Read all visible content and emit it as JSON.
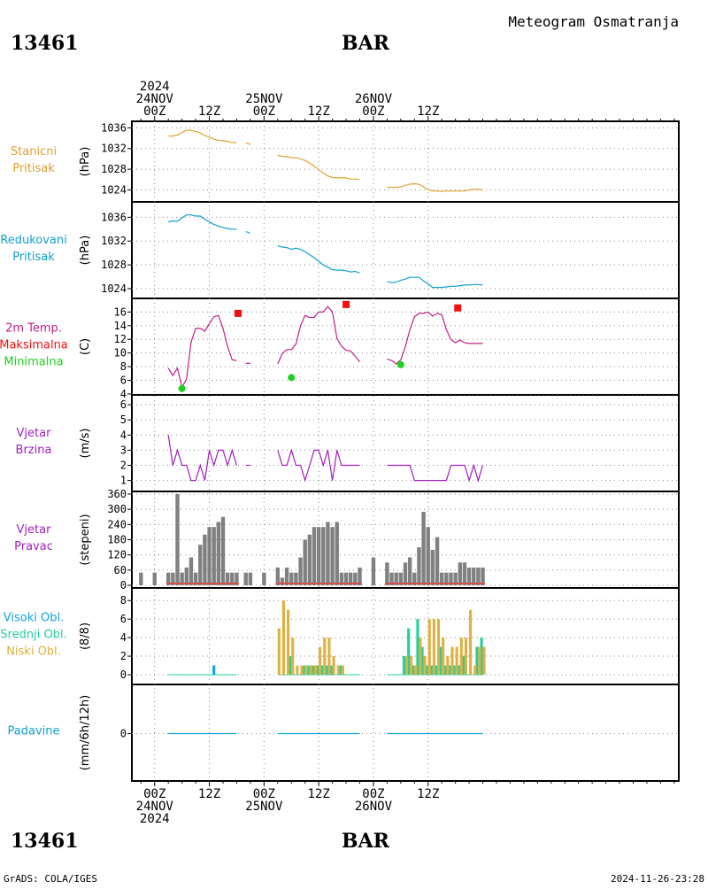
{
  "header": {
    "title": "Meteogram Osmatranja",
    "station_id": "13461",
    "station_name": "BAR"
  },
  "footer": {
    "left": "GrADS: COLA/IGES",
    "right": "2024-11-26-23:28"
  },
  "colors": {
    "station_pressure": "#e0a030",
    "sea_pressure": "#10a0d0",
    "temp_line": "#c0208a",
    "temp_max": "#f01010",
    "temp_min": "#20d020",
    "wind": "#a020c0",
    "wind_dir_bar": "#808080",
    "wind_dir_base": "#d05050",
    "cloud_high": "#10a0e0",
    "cloud_mid": "#20d0a0",
    "cloud_low": "#e0b040",
    "precip": "#10a0d0"
  },
  "chart_data": {
    "type": "meteogram",
    "time_axis": {
      "unit": "hours since 2024-11-24 00Z",
      "range": [
        -5,
        115
      ],
      "top_labels": [
        {
          "t": 0,
          "lines": [
            "2024",
            "24NOV",
            "00Z"
          ]
        },
        {
          "t": 24,
          "lines": [
            "25NOV",
            "00Z"
          ]
        },
        {
          "t": 48,
          "lines": [
            "26NOV",
            "00Z"
          ]
        }
      ],
      "bottom_labels": [
        {
          "t": 0,
          "lines": [
            "00Z",
            "24NOV",
            "2024"
          ]
        },
        {
          "t": 24,
          "lines": [
            "00Z",
            "25NOV"
          ]
        },
        {
          "t": 48,
          "lines": [
            "00Z",
            "26NOV"
          ]
        }
      ],
      "noon_label": "12Z",
      "noon_ticks": [
        12,
        36,
        60
      ]
    },
    "panels": [
      {
        "id": "station_pressure",
        "label_lines": [
          "Stanicni",
          "Pritisak"
        ],
        "unit": "(hPa)",
        "ylim": [
          1023.4,
          1036.4
        ],
        "ticks": [
          1024,
          1028,
          1032,
          1036
        ],
        "series": [
          {
            "x": [
              3,
              4,
              5,
              6,
              7,
              8,
              9,
              10,
              11,
              12,
              13,
              14,
              15,
              16,
              17,
              18
            ],
            "y": [
              1034.4,
              1034.4,
              1034.6,
              1035.1,
              1035.6,
              1035.5,
              1035.3,
              1035.0,
              1034.5,
              1034.2,
              1033.8,
              1033.6,
              1033.5,
              1033.4,
              1033.1,
              1033.2
            ]
          },
          {
            "x": [
              20,
              21
            ],
            "y": [
              1033.1,
              1032.8
            ]
          },
          {
            "x": [
              27,
              28,
              29,
              30,
              31,
              32,
              33,
              34,
              35,
              36,
              37,
              38,
              39,
              40,
              41,
              42,
              43,
              44,
              45
            ],
            "y": [
              1030.7,
              1030.5,
              1030.4,
              1030.2,
              1030.2,
              1030.0,
              1029.7,
              1029.2,
              1028.6,
              1027.9,
              1027.3,
              1026.7,
              1026.4,
              1026.3,
              1026.4,
              1026.3,
              1026.1,
              1026.1,
              1026.0
            ]
          },
          {
            "x": [
              51,
              52,
              53,
              54,
              55,
              56,
              57,
              58,
              59,
              60,
              61,
              62,
              63,
              64,
              65,
              66,
              67,
              68,
              69,
              70,
              71,
              72
            ],
            "y": [
              1024.5,
              1024.5,
              1024.5,
              1024.6,
              1024.9,
              1025.1,
              1025.2,
              1025.1,
              1024.6,
              1024.0,
              1023.8,
              1023.8,
              1023.7,
              1023.8,
              1023.8,
              1023.8,
              1023.8,
              1023.8,
              1024.0,
              1024.1,
              1024.1,
              1024.0
            ]
          }
        ]
      },
      {
        "id": "sea_pressure",
        "label_lines": [
          "Redukovani",
          "Pritisak"
        ],
        "unit": "(hPa)",
        "ylim": [
          1023.4,
          1036.8
        ],
        "ticks": [
          1024,
          1028,
          1032,
          1036
        ],
        "series": [
          {
            "x": [
              3,
              4,
              5,
              6,
              7,
              8,
              9,
              10,
              11,
              12,
              13,
              14,
              15,
              16,
              17,
              18
            ],
            "y": [
              1035.2,
              1035.4,
              1035.3,
              1035.9,
              1036.4,
              1036.4,
              1036.2,
              1036.2,
              1035.7,
              1035.2,
              1034.8,
              1034.5,
              1034.3,
              1034.1,
              1034.0,
              1034.0
            ]
          },
          {
            "x": [
              20,
              21
            ],
            "y": [
              1033.6,
              1033.3
            ]
          },
          {
            "x": [
              27,
              28,
              29,
              30,
              31,
              32,
              33,
              34,
              35,
              36,
              37,
              38,
              39,
              40,
              41,
              42,
              43,
              44,
              45
            ],
            "y": [
              1031.2,
              1031.0,
              1030.9,
              1030.6,
              1030.8,
              1030.6,
              1030.2,
              1029.7,
              1029.2,
              1028.6,
              1028.0,
              1027.6,
              1027.2,
              1027.1,
              1027.1,
              1027.0,
              1026.8,
              1026.9,
              1026.6
            ]
          },
          {
            "x": [
              51,
              52,
              53,
              54,
              55,
              56,
              57,
              58,
              59,
              60,
              61,
              62,
              63,
              64,
              65,
              66,
              67,
              68,
              69,
              70,
              71,
              72
            ],
            "y": [
              1025.2,
              1025.0,
              1025.1,
              1025.4,
              1025.6,
              1025.9,
              1025.9,
              1025.9,
              1025.3,
              1024.8,
              1024.2,
              1024.2,
              1024.2,
              1024.3,
              1024.4,
              1024.4,
              1024.5,
              1024.6,
              1024.6,
              1024.7,
              1024.7,
              1024.6
            ]
          }
        ]
      },
      {
        "id": "temperature",
        "label_lines": [
          "2m Temp.",
          "Maksimalna",
          "Minimalna"
        ],
        "unit": "(C)",
        "ylim": [
          4,
          17.6
        ],
        "ticks": [
          4,
          6,
          8,
          10,
          12,
          14,
          16
        ],
        "series": [
          {
            "x": [
              3,
              4,
              5,
              6,
              7,
              8,
              9,
              10,
              11,
              12,
              13,
              14,
              15,
              16,
              17,
              18
            ],
            "y": [
              7.8,
              6.7,
              7.8,
              5.0,
              6.2,
              11.6,
              13.6,
              13.6,
              13.2,
              14.3,
              15.3,
              15.5,
              13.6,
              11.0,
              9.0,
              8.9
            ]
          },
          {
            "x": [
              20,
              21
            ],
            "y": [
              8.5,
              8.5
            ]
          },
          {
            "x": [
              27,
              28,
              29,
              30,
              31,
              32,
              33,
              34,
              35,
              36,
              37,
              38,
              39,
              40,
              41,
              42,
              43,
              44,
              45
            ],
            "y": [
              8.4,
              9.9,
              10.5,
              10.5,
              11.3,
              14.0,
              15.5,
              15.2,
              15.2,
              16.0,
              16.0,
              16.8,
              16.0,
              12.1,
              11.0,
              10.4,
              10.3,
              9.5,
              8.7
            ]
          },
          {
            "x": [
              51,
              52,
              53,
              54,
              55,
              56,
              57,
              58,
              59,
              60,
              61,
              62,
              63,
              64,
              65,
              66,
              67,
              68,
              69,
              70,
              71,
              72
            ],
            "y": [
              9.1,
              8.9,
              8.4,
              9.0,
              10.9,
              13.4,
              15.3,
              15.8,
              15.8,
              16.0,
              15.4,
              15.8,
              15.6,
              13.4,
              12.0,
              11.5,
              11.9,
              11.5,
              11.4,
              11.4,
              11.4,
              11.4
            ]
          }
        ],
        "max_points": [
          {
            "x": 18.3,
            "y": 15.8
          },
          {
            "x": 42.0,
            "y": 17.1
          },
          {
            "x": 66.5,
            "y": 16.6
          }
        ],
        "min_points": [
          {
            "x": 6.0,
            "y": 4.8
          },
          {
            "x": 30.0,
            "y": 6.4
          },
          {
            "x": 54.0,
            "y": 8.3
          }
        ]
      },
      {
        "id": "wind_speed",
        "label_lines": [
          "Vjetar",
          "Brzina"
        ],
        "unit": "(m/s)",
        "ylim": [
          0.8,
          6.3
        ],
        "ticks": [
          1,
          2,
          3,
          4,
          5,
          6
        ],
        "series": [
          {
            "x": [
              3,
              4,
              5,
              6,
              7,
              8,
              9,
              10,
              11,
              12,
              13,
              14,
              15,
              16,
              17,
              18
            ],
            "y": [
              4,
              2,
              3,
              2,
              2,
              1,
              1,
              2,
              1,
              3,
              2,
              3,
              3,
              2,
              3,
              2
            ]
          },
          {
            "x": [
              20,
              21
            ],
            "y": [
              2,
              2
            ]
          },
          {
            "x": [
              27,
              28,
              29,
              30,
              31,
              32,
              33,
              34,
              35,
              36,
              37,
              38,
              39,
              40,
              41,
              42,
              43,
              44,
              45
            ],
            "y": [
              3,
              2,
              2,
              3,
              2,
              2,
              1,
              2,
              3,
              3,
              2,
              3,
              1,
              3,
              2,
              2,
              2,
              2,
              2
            ]
          },
          {
            "x": [
              51,
              52,
              53,
              54,
              55,
              56,
              57,
              58,
              59,
              60,
              61,
              62,
              63,
              64,
              65,
              66,
              67,
              68,
              69,
              70,
              71,
              72
            ],
            "y": [
              2,
              2,
              2,
              2,
              2,
              2,
              1,
              1,
              1,
              1,
              1,
              1,
              1,
              1,
              2,
              2,
              2,
              2,
              1,
              2,
              1,
              2
            ]
          }
        ]
      },
      {
        "id": "wind_direction",
        "label_lines": [
          "Vjetar",
          "Pravac"
        ],
        "unit": "(stepeni)",
        "ylim": [
          0,
          360
        ],
        "ticks": [
          0,
          60,
          120,
          180,
          240,
          300,
          360
        ],
        "tick_labels": [
          "0",
          "60",
          "120",
          "180",
          "240",
          "300",
          "360"
        ],
        "bars": {
          "x": [
            -3,
            0,
            3,
            4,
            5,
            6,
            7,
            8,
            9,
            10,
            11,
            12,
            13,
            14,
            15,
            16,
            17,
            18,
            20,
            21,
            24,
            27,
            28,
            29,
            30,
            31,
            32,
            33,
            34,
            35,
            36,
            37,
            38,
            39,
            40,
            41,
            42,
            43,
            44,
            45,
            48,
            51,
            52,
            53,
            54,
            55,
            56,
            57,
            58,
            59,
            60,
            61,
            62,
            63,
            64,
            65,
            66,
            67,
            68,
            69,
            70,
            71,
            72
          ],
          "y": [
            50,
            50,
            50,
            50,
            360,
            50,
            70,
            110,
            50,
            160,
            200,
            230,
            230,
            250,
            270,
            50,
            50,
            50,
            50,
            50,
            50,
            70,
            30,
            70,
            50,
            50,
            110,
            180,
            200,
            230,
            230,
            230,
            250,
            230,
            250,
            50,
            50,
            50,
            50,
            70,
            110,
            90,
            50,
            50,
            50,
            90,
            110,
            50,
            150,
            290,
            230,
            140,
            190,
            50,
            50,
            50,
            50,
            90,
            90,
            70,
            70,
            70,
            70
          ]
        }
      },
      {
        "id": "clouds",
        "label_lines": [
          "Visoki Obl.",
          "Srednji Obl.",
          "Niski Obl."
        ],
        "unit": "(8/8)",
        "ylim": [
          0,
          8.5
        ],
        "ticks": [
          0,
          2,
          4,
          6,
          8
        ],
        "high": {
          "x": [
            13
          ],
          "y": [
            1
          ]
        },
        "mid": {
          "x": [
            30,
            33,
            34,
            35,
            36,
            37,
            38,
            39,
            41,
            55,
            56,
            57,
            58,
            59,
            60,
            61,
            62,
            63,
            64,
            65,
            66,
            67,
            68,
            71,
            72
          ],
          "y": [
            2,
            1,
            1,
            1,
            1,
            1,
            1,
            1,
            1,
            2,
            5,
            1,
            6,
            3,
            1,
            1,
            1,
            3,
            1,
            1,
            1,
            1,
            2,
            3,
            4
          ]
        },
        "low": {
          "x": [
            27,
            28,
            29,
            30,
            31,
            32,
            33,
            34,
            35,
            36,
            37,
            38,
            39,
            40,
            41,
            55,
            56,
            57,
            58,
            59,
            60,
            61,
            62,
            63,
            64,
            65,
            66,
            67,
            68,
            69,
            70,
            71,
            72
          ],
          "y": [
            5,
            8,
            7,
            4,
            1,
            1,
            1,
            1,
            1,
            3,
            4,
            4,
            2,
            1,
            1,
            2,
            2,
            1,
            4,
            2,
            6,
            6,
            6,
            4,
            2,
            3,
            3,
            4,
            4,
            7,
            1,
            3,
            3
          ]
        }
      },
      {
        "id": "precipitation",
        "label_lines": [
          "Padavine"
        ],
        "unit": "(mm/6h/12h)",
        "ylim": [
          -6,
          6
        ],
        "ticks": [
          0
        ],
        "series": [
          {
            "x": [
              3,
              18
            ],
            "y": [
              0,
              0
            ]
          },
          {
            "x": [
              27,
              45
            ],
            "y": [
              0,
              0
            ]
          },
          {
            "x": [
              51,
              72
            ],
            "y": [
              0,
              0
            ]
          }
        ]
      }
    ]
  }
}
